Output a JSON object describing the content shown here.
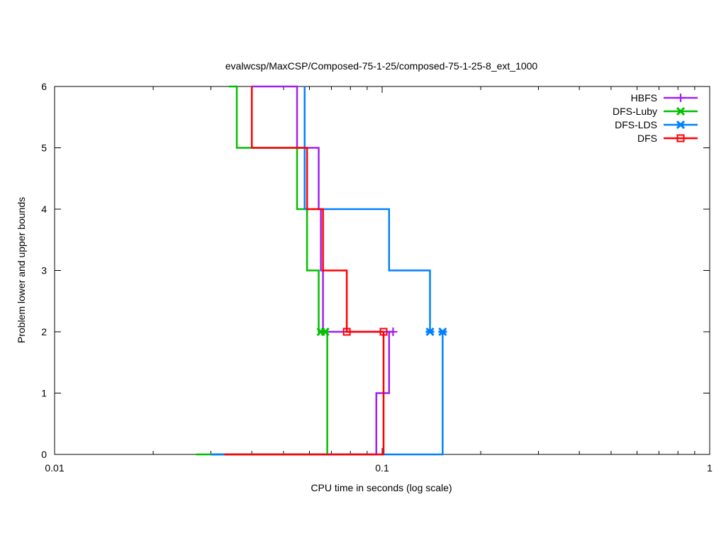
{
  "chart_data": {
    "type": "line",
    "title": "evalwcsp/MaxCSP/Composed-75-1-25/composed-75-1-25-8_ext_1000",
    "xlabel": "CPU time in seconds (log scale)",
    "ylabel": "Problem lower and upper bounds",
    "x_scale": "log",
    "xlim": [
      0.01,
      1
    ],
    "ylim": [
      0,
      6
    ],
    "x_ticks": [
      0.01,
      0.1,
      1
    ],
    "x_tick_labels": [
      "0.01",
      "0.1",
      "1"
    ],
    "y_ticks": [
      0,
      1,
      2,
      3,
      4,
      5,
      6
    ],
    "y_tick_labels": [
      "0",
      "1",
      "2",
      "3",
      "4",
      "5",
      "6"
    ],
    "grid": false,
    "legend_position": "top-right",
    "series": [
      {
        "name": "HBFS",
        "color": "#a020f0",
        "marker": "plus",
        "upper": [
          [
            0.04,
            6
          ],
          [
            0.055,
            6
          ],
          [
            0.055,
            5
          ],
          [
            0.064,
            5
          ],
          [
            0.064,
            4
          ],
          [
            0.065,
            4
          ],
          [
            0.065,
            3
          ],
          [
            0.066,
            3
          ],
          [
            0.066,
            2
          ],
          [
            0.108,
            2
          ]
        ],
        "lower": [
          [
            0.03,
            0
          ],
          [
            0.096,
            0
          ],
          [
            0.096,
            1
          ],
          [
            0.105,
            1
          ],
          [
            0.105,
            2
          ],
          [
            0.108,
            2
          ]
        ],
        "markers": [
          [
            0.108,
            2
          ]
        ]
      },
      {
        "name": "DFS-Luby",
        "color": "#00c000",
        "marker": "x",
        "upper": [
          [
            0.034,
            6
          ],
          [
            0.036,
            6
          ],
          [
            0.036,
            5
          ],
          [
            0.055,
            5
          ],
          [
            0.055,
            4
          ],
          [
            0.059,
            4
          ],
          [
            0.059,
            3
          ],
          [
            0.064,
            3
          ],
          [
            0.064,
            2
          ],
          [
            0.067,
            2
          ]
        ],
        "lower": [
          [
            0.027,
            0
          ],
          [
            0.068,
            0
          ],
          [
            0.068,
            2
          ],
          [
            0.067,
            2
          ]
        ],
        "markers": [
          [
            0.065,
            2
          ],
          [
            0.067,
            2
          ]
        ]
      },
      {
        "name": "DFS-LDS",
        "color": "#0080ff",
        "marker": "star",
        "upper": [
          [
            0.058,
            6
          ],
          [
            0.058,
            4
          ],
          [
            0.105,
            4
          ],
          [
            0.105,
            3
          ],
          [
            0.14,
            3
          ],
          [
            0.14,
            2
          ]
        ],
        "lower": [
          [
            0.03,
            0
          ],
          [
            0.153,
            0
          ],
          [
            0.153,
            2
          ]
        ],
        "markers": [
          [
            0.14,
            2
          ],
          [
            0.153,
            2
          ]
        ]
      },
      {
        "name": "DFS",
        "color": "#ff0000",
        "marker": "square",
        "upper": [
          [
            0.04,
            6
          ],
          [
            0.04,
            5
          ],
          [
            0.059,
            5
          ],
          [
            0.059,
            4
          ],
          [
            0.066,
            4
          ],
          [
            0.066,
            3
          ],
          [
            0.078,
            3
          ],
          [
            0.078,
            2
          ],
          [
            0.101,
            2
          ]
        ],
        "lower": [
          [
            0.033,
            0
          ],
          [
            0.101,
            0
          ],
          [
            0.101,
            2
          ]
        ],
        "markers": [
          [
            0.078,
            2
          ],
          [
            0.101,
            2
          ]
        ]
      }
    ]
  }
}
